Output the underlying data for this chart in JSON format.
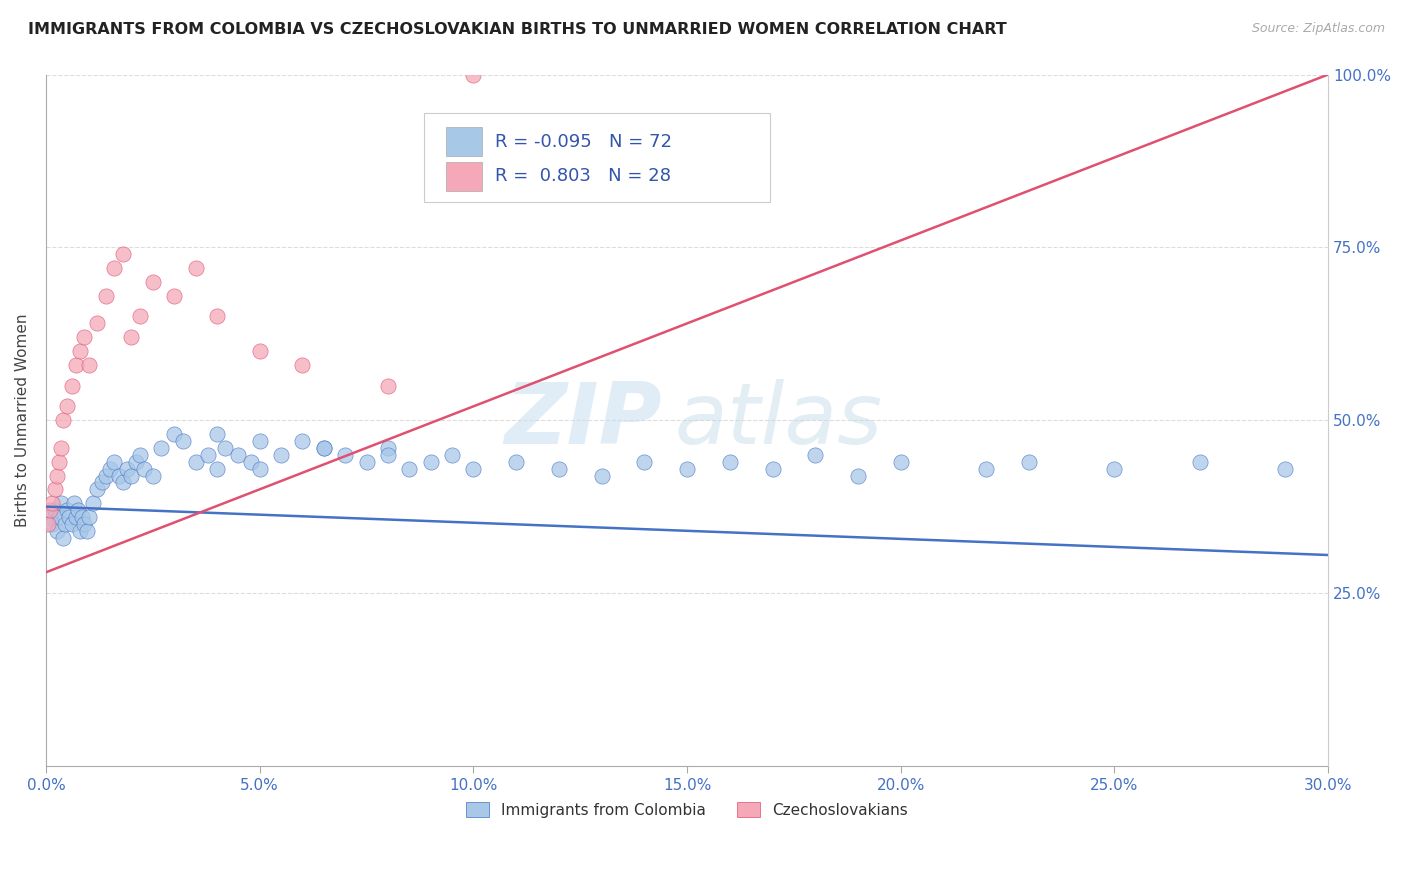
{
  "title": "IMMIGRANTS FROM COLOMBIA VS CZECHOSLOVAKIAN BIRTHS TO UNMARRIED WOMEN CORRELATION CHART",
  "source": "Source: ZipAtlas.com",
  "ylabel_label": "Births to Unmarried Women",
  "legend_label1": "Immigrants from Colombia",
  "legend_label2": "Czechoslovakians",
  "R1": "-0.095",
  "N1": "72",
  "R2": "0.803",
  "N2": "28",
  "blue_color": "#A8C8E8",
  "pink_color": "#F4A8B8",
  "blue_line_color": "#4472C4",
  "pink_line_color": "#E05070",
  "watermark_zip": "ZIP",
  "watermark_atlas": "atlas",
  "background_color": "#FFFFFF",
  "grid_color": "#DDDDDD",
  "title_color": "#222222",
  "axis_label_color": "#4472C4",
  "xmin": 0.0,
  "xmax": 30.0,
  "ymin": 0.0,
  "ymax": 100.0,
  "ytick_positions": [
    25,
    50,
    75,
    100
  ],
  "xtick_positions": [
    0,
    5,
    10,
    15,
    20,
    25,
    30
  ],
  "blue_line_y0": 37.5,
  "blue_line_y1": 30.5,
  "pink_line_y0": 28.0,
  "pink_line_y1": 100.0,
  "blue_scatter_x": [
    0.1,
    0.15,
    0.2,
    0.25,
    0.3,
    0.35,
    0.4,
    0.45,
    0.5,
    0.55,
    0.6,
    0.65,
    0.7,
    0.75,
    0.8,
    0.85,
    0.9,
    0.95,
    1.0,
    1.1,
    1.2,
    1.3,
    1.4,
    1.5,
    1.6,
    1.7,
    1.8,
    1.9,
    2.0,
    2.1,
    2.2,
    2.3,
    2.5,
    2.7,
    3.0,
    3.2,
    3.5,
    3.8,
    4.0,
    4.2,
    4.5,
    4.8,
    5.0,
    5.5,
    6.0,
    6.5,
    7.0,
    7.5,
    8.0,
    8.5,
    9.0,
    9.5,
    10.0,
    11.0,
    12.0,
    13.0,
    14.0,
    15.0,
    16.0,
    17.0,
    18.0,
    19.0,
    20.0,
    22.0,
    23.0,
    25.0,
    27.0,
    29.0,
    4.0,
    5.0,
    6.5,
    8.0
  ],
  "blue_scatter_y": [
    36,
    35,
    37,
    34,
    36,
    38,
    33,
    35,
    37,
    36,
    35,
    38,
    36,
    37,
    34,
    36,
    35,
    34,
    36,
    38,
    40,
    41,
    42,
    43,
    44,
    42,
    41,
    43,
    42,
    44,
    45,
    43,
    42,
    46,
    48,
    47,
    44,
    45,
    43,
    46,
    45,
    44,
    43,
    45,
    47,
    46,
    45,
    44,
    46,
    43,
    44,
    45,
    43,
    44,
    43,
    42,
    44,
    43,
    44,
    43,
    45,
    42,
    44,
    43,
    44,
    43,
    44,
    43,
    48,
    47,
    46,
    45
  ],
  "pink_scatter_x": [
    0.05,
    0.1,
    0.15,
    0.2,
    0.25,
    0.3,
    0.35,
    0.4,
    0.5,
    0.6,
    0.7,
    0.8,
    0.9,
    1.0,
    1.2,
    1.4,
    1.6,
    1.8,
    2.0,
    2.2,
    2.5,
    3.0,
    3.5,
    4.0,
    5.0,
    6.0,
    8.0,
    10.0
  ],
  "pink_scatter_y": [
    35,
    37,
    38,
    40,
    42,
    44,
    46,
    50,
    52,
    55,
    58,
    60,
    62,
    58,
    64,
    68,
    72,
    74,
    62,
    65,
    70,
    68,
    72,
    65,
    60,
    58,
    55,
    100
  ]
}
